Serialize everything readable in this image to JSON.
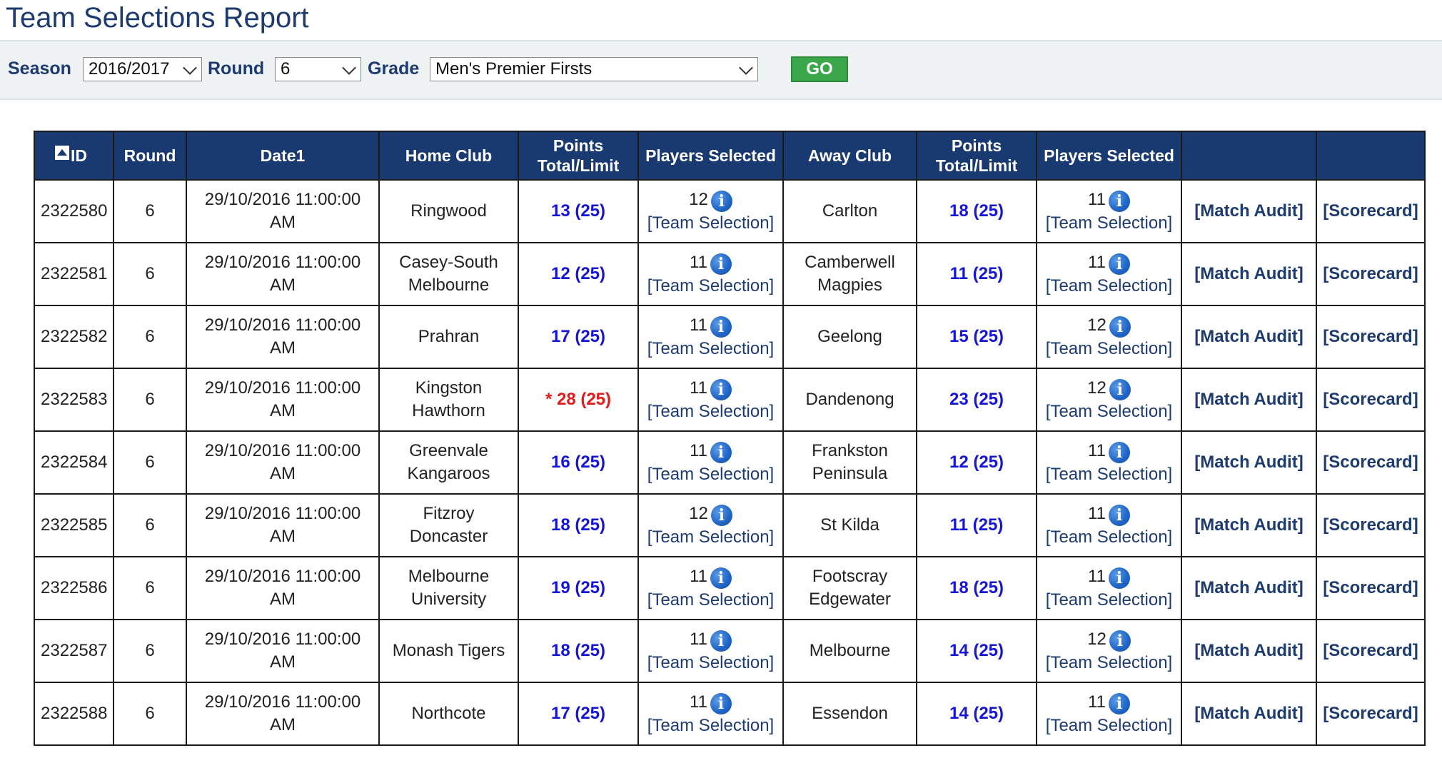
{
  "page": {
    "title": "Team Selections Report"
  },
  "filters": {
    "season_label": "Season",
    "season_value": "2016/2017",
    "round_label": "Round",
    "round_value": "6",
    "grade_label": "Grade",
    "grade_value": "Men's Premier Firsts",
    "go_label": "GO"
  },
  "table": {
    "headers": {
      "id": "ID",
      "round": "Round",
      "date": "Date1",
      "home_club": "Home Club",
      "points_line1": "Points",
      "points_line2": "Total/Limit",
      "players_selected": "Players Selected",
      "away_club": "Away Club"
    },
    "team_selection_label": "[Team Selection]",
    "match_audit_label": "[Match Audit]",
    "scorecard_label": "[Scorecard]",
    "rows": [
      {
        "id": "2322580",
        "round": "6",
        "date_l1": "29/10/2016 11:00:00",
        "date_l2": "AM",
        "home_l1": "Ringwood",
        "home_l2": "",
        "home_points": "13 (25)",
        "home_over": false,
        "home_players": "12",
        "away_l1": "Carlton",
        "away_l2": "",
        "away_points": "18 (25)",
        "away_players": "11"
      },
      {
        "id": "2322581",
        "round": "6",
        "date_l1": "29/10/2016 11:00:00",
        "date_l2": "AM",
        "home_l1": "Casey-South",
        "home_l2": "Melbourne",
        "home_points": "12 (25)",
        "home_over": false,
        "home_players": "11",
        "away_l1": "Camberwell",
        "away_l2": "Magpies",
        "away_points": "11 (25)",
        "away_players": "11"
      },
      {
        "id": "2322582",
        "round": "6",
        "date_l1": "29/10/2016 11:00:00",
        "date_l2": "AM",
        "home_l1": "Prahran",
        "home_l2": "",
        "home_points": "17 (25)",
        "home_over": false,
        "home_players": "11",
        "away_l1": "Geelong",
        "away_l2": "",
        "away_points": "15 (25)",
        "away_players": "12"
      },
      {
        "id": "2322583",
        "round": "6",
        "date_l1": "29/10/2016 11:00:00",
        "date_l2": "AM",
        "home_l1": "Kingston",
        "home_l2": "Hawthorn",
        "home_points": "* 28 (25)",
        "home_over": true,
        "home_players": "11",
        "away_l1": "Dandenong",
        "away_l2": "",
        "away_points": "23 (25)",
        "away_players": "12"
      },
      {
        "id": "2322584",
        "round": "6",
        "date_l1": "29/10/2016 11:00:00",
        "date_l2": "AM",
        "home_l1": "Greenvale",
        "home_l2": "Kangaroos",
        "home_points": "16 (25)",
        "home_over": false,
        "home_players": "11",
        "away_l1": "Frankston",
        "away_l2": "Peninsula",
        "away_points": "12 (25)",
        "away_players": "11"
      },
      {
        "id": "2322585",
        "round": "6",
        "date_l1": "29/10/2016 11:00:00",
        "date_l2": "AM",
        "home_l1": "Fitzroy",
        "home_l2": "Doncaster",
        "home_points": "18 (25)",
        "home_over": false,
        "home_players": "12",
        "away_l1": "St Kilda",
        "away_l2": "",
        "away_points": "11 (25)",
        "away_players": "11"
      },
      {
        "id": "2322586",
        "round": "6",
        "date_l1": "29/10/2016 11:00:00",
        "date_l2": "AM",
        "home_l1": "Melbourne",
        "home_l2": "University",
        "home_points": "19 (25)",
        "home_over": false,
        "home_players": "11",
        "away_l1": "Footscray",
        "away_l2": "Edgewater",
        "away_points": "18 (25)",
        "away_players": "11"
      },
      {
        "id": "2322587",
        "round": "6",
        "date_l1": "29/10/2016 11:00:00",
        "date_l2": "AM",
        "home_l1": "Monash Tigers",
        "home_l2": "",
        "home_points": "18 (25)",
        "home_over": false,
        "home_players": "11",
        "away_l1": "Melbourne",
        "away_l2": "",
        "away_points": "14 (25)",
        "away_players": "12"
      },
      {
        "id": "2322588",
        "round": "6",
        "date_l1": "29/10/2016 11:00:00",
        "date_l2": "AM",
        "home_l1": "Northcote",
        "home_l2": "",
        "home_points": "17 (25)",
        "home_over": false,
        "home_players": "11",
        "away_l1": "Essendon",
        "away_l2": "",
        "away_points": "14 (25)",
        "away_players": "11"
      }
    ]
  }
}
